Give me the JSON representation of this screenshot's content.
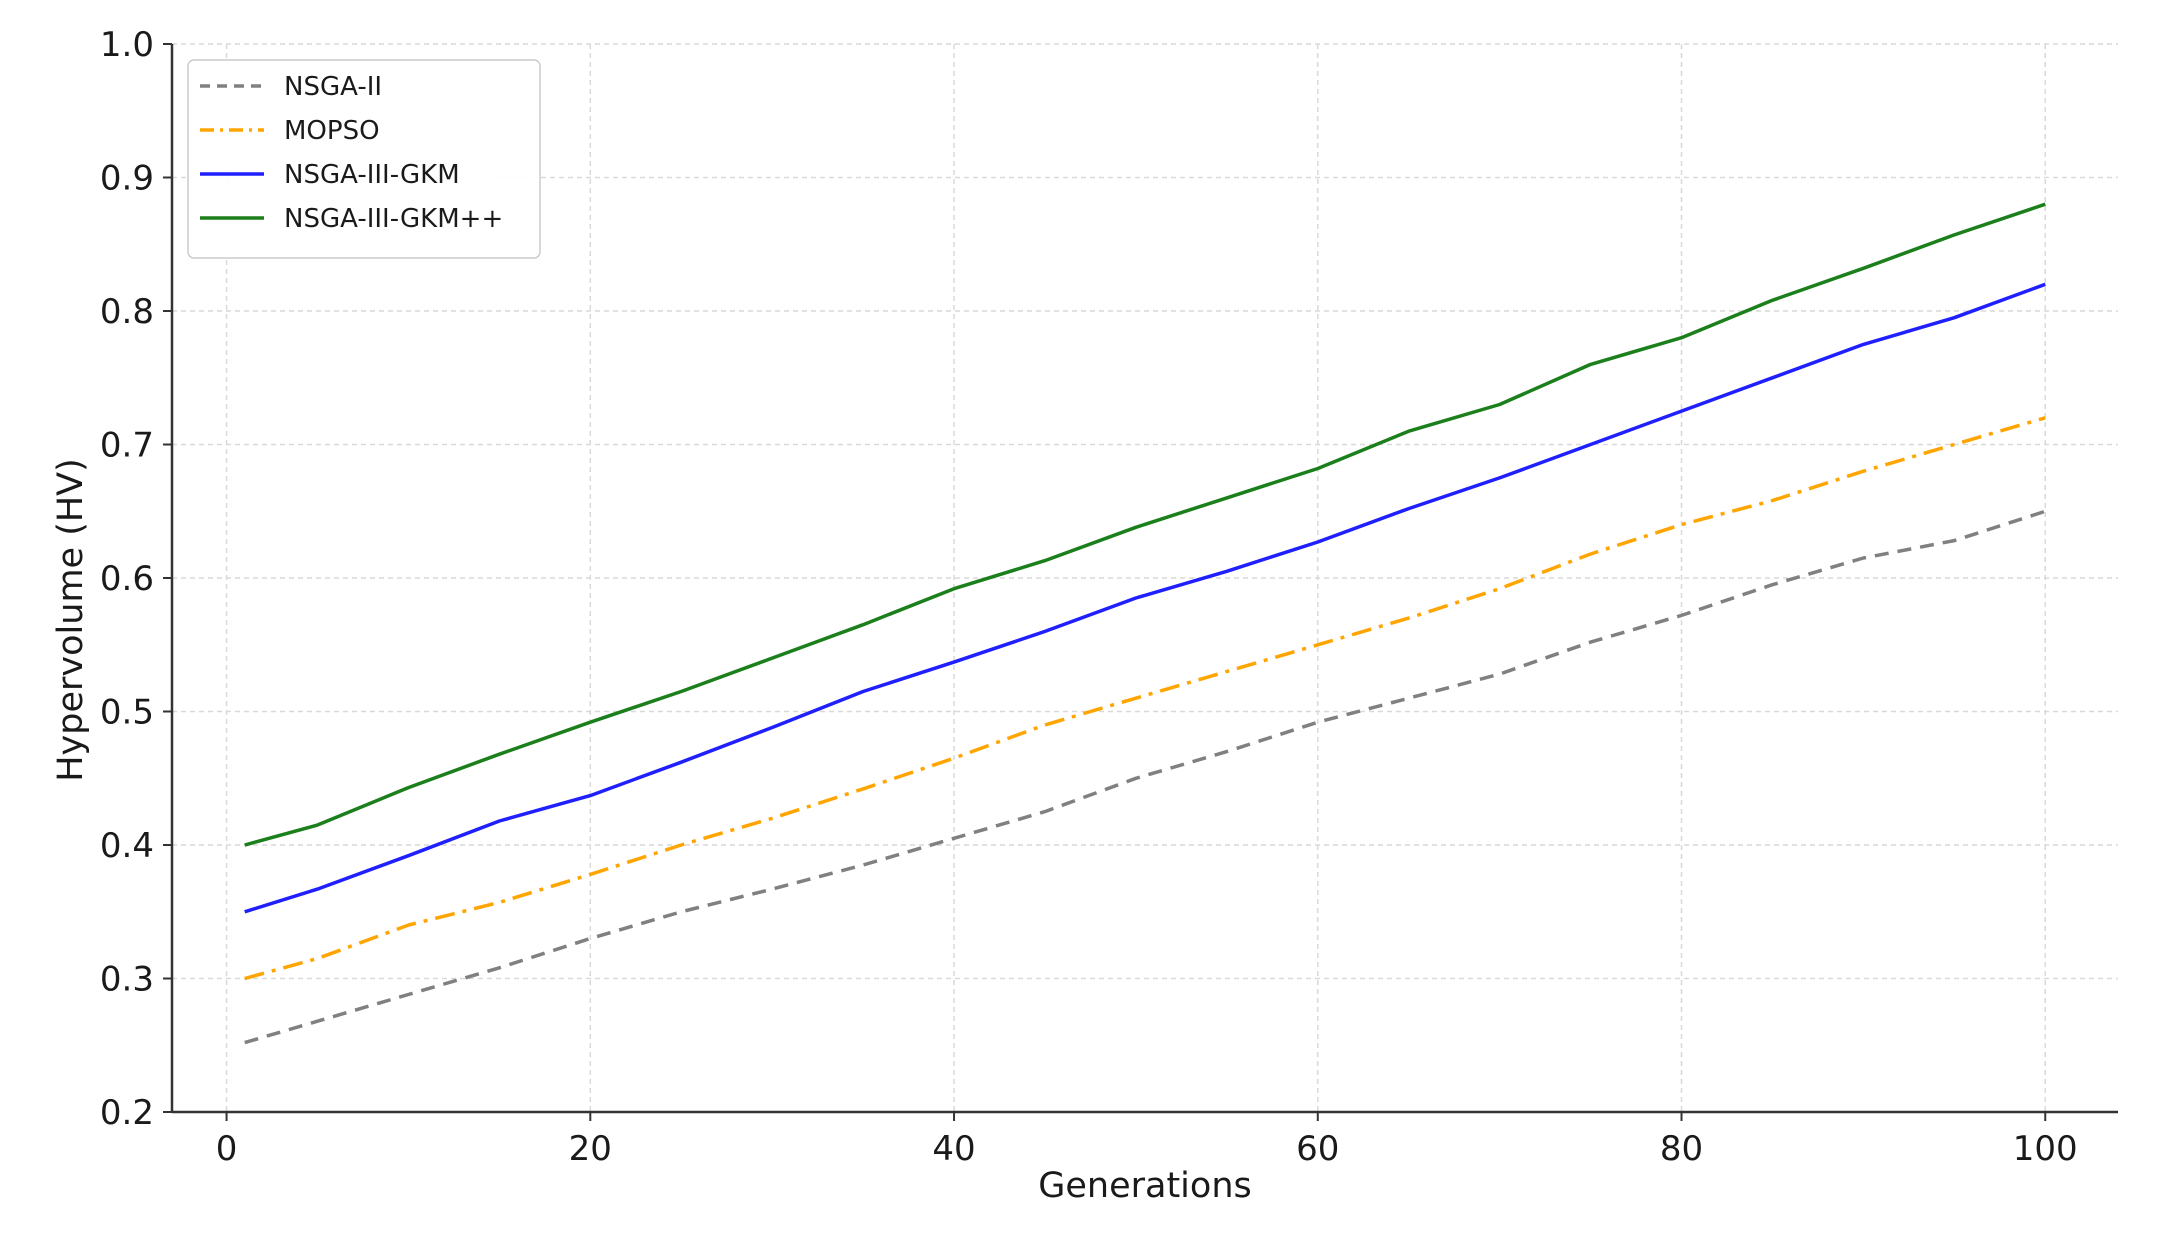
{
  "chart_data": {
    "type": "line",
    "xlabel": "Generations",
    "ylabel": "Hypervolume (HV)",
    "xlim": [
      -3,
      104
    ],
    "ylim": [
      0.2,
      1.0
    ],
    "xticks": [
      0,
      20,
      40,
      60,
      80,
      100
    ],
    "xtick_labels": [
      "0",
      "20",
      "40",
      "60",
      "80",
      "100"
    ],
    "yticks": [
      0.2,
      0.3,
      0.4,
      0.5,
      0.6,
      0.7,
      0.8,
      0.9,
      1.0
    ],
    "ytick_labels": [
      "0.2",
      "0.3",
      "0.4",
      "0.5",
      "0.6",
      "0.7",
      "0.8",
      "0.9",
      "1.0"
    ],
    "grid": true,
    "legend_position": "top-left",
    "x": [
      1,
      5,
      10,
      15,
      20,
      25,
      30,
      35,
      40,
      45,
      50,
      55,
      60,
      65,
      70,
      75,
      80,
      85,
      90,
      95,
      100
    ],
    "series": [
      {
        "name": "NSGA-II",
        "color": "#808080",
        "line_style": "dashed",
        "values": [
          0.252,
          0.268,
          0.288,
          0.308,
          0.33,
          0.35,
          0.367,
          0.385,
          0.405,
          0.425,
          0.45,
          0.47,
          0.492,
          0.51,
          0.528,
          0.552,
          0.572,
          0.595,
          0.615,
          0.628,
          0.65
        ]
      },
      {
        "name": "MOPSO",
        "color": "#ffa500",
        "line_style": "dashdot",
        "values": [
          0.3,
          0.315,
          0.34,
          0.357,
          0.378,
          0.4,
          0.42,
          0.442,
          0.465,
          0.49,
          0.51,
          0.53,
          0.55,
          0.57,
          0.592,
          0.618,
          0.64,
          0.658,
          0.68,
          0.7,
          0.72
        ]
      },
      {
        "name": "NSGA-III-GKM",
        "color": "#1f1fff",
        "line_style": "solid",
        "values": [
          0.35,
          0.367,
          0.392,
          0.418,
          0.437,
          0.462,
          0.488,
          0.515,
          0.537,
          0.56,
          0.585,
          0.605,
          0.627,
          0.652,
          0.675,
          0.7,
          0.725,
          0.75,
          0.775,
          0.795,
          0.82
        ]
      },
      {
        "name": "NSGA-III-GKM++",
        "color": "#1b7f1b",
        "line_style": "solid",
        "values": [
          0.4,
          0.415,
          0.443,
          0.468,
          0.492,
          0.515,
          0.54,
          0.565,
          0.592,
          0.613,
          0.638,
          0.66,
          0.682,
          0.71,
          0.73,
          0.76,
          0.78,
          0.808,
          0.832,
          0.857,
          0.88
        ]
      }
    ]
  }
}
